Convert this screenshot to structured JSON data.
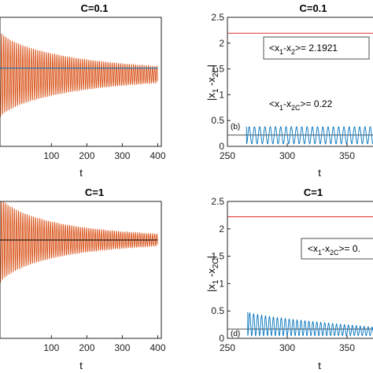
{
  "chart_data": [
    {
      "type": "line",
      "title": "C=0.1",
      "xlabel": "t",
      "xlim": [
        -45,
        410
      ],
      "xticks": [
        100,
        200,
        300,
        400
      ],
      "colors": {
        "oscillation": "#d95319",
        "reference": "#0072bd"
      },
      "series": [
        {
          "kind": "decaying-oscillation",
          "t_start": -45,
          "t_end": 400,
          "amplitude_start": 0.95,
          "amplitude_end": 0.18,
          "center": 0.16,
          "period": 6
        },
        {
          "kind": "constant",
          "value": 0.3
        }
      ]
    },
    {
      "type": "line",
      "title": "C=0.1",
      "xlabel": "t",
      "ylabel_main": "|x",
      "ylabel_sub1": "1",
      "ylabel_mid": " -x",
      "ylabel_sub2": "2C",
      "ylabel_end": "|",
      "xlim": [
        250,
        375
      ],
      "ylim": [
        0,
        2.5
      ],
      "xticks": [
        250,
        300,
        350
      ],
      "yticks": [
        0,
        0.5,
        1,
        1.5,
        2,
        2.5
      ],
      "tag": "(b)",
      "colors": {
        "oscillation": "#0072bd",
        "upper": "#e03030",
        "lower": "#555555"
      },
      "series": [
        {
          "kind": "constant",
          "value": 2.1921,
          "color": "upper"
        },
        {
          "kind": "constant",
          "value": 0.22,
          "color": "lower",
          "from": 250
        },
        {
          "kind": "oscillation",
          "t_start": 266,
          "t_end": 375,
          "min": 0.05,
          "max": 0.38,
          "period": 4.4
        }
      ],
      "annotations": [
        {
          "pre": "<x",
          "s1": "1",
          "mid": "-x",
          "s2": "2",
          "post": ">= 2.1921"
        },
        {
          "pre": "<x",
          "s1": "1",
          "mid": "-x",
          "s2": "2C",
          "post": ">= 0.22"
        }
      ]
    },
    {
      "type": "line",
      "title": "C=1",
      "xlabel": "t",
      "xlim": [
        -45,
        410
      ],
      "xticks": [
        100,
        200,
        300,
        400
      ],
      "colors": {
        "oscillation": "#d95319",
        "reference": "#000000"
      },
      "series": [
        {
          "kind": "decaying-oscillation",
          "t_start": -45,
          "t_end": 400,
          "amplitude_start": 0.9,
          "amplitude_end": 0.12,
          "center": 0.0,
          "period": 6
        },
        {
          "kind": "constant",
          "value": 0.0
        }
      ]
    },
    {
      "type": "line",
      "title": "C=1",
      "xlabel": "t",
      "ylabel_main": "|x",
      "ylabel_sub1": "1",
      "ylabel_mid": " -x",
      "ylabel_sub2": "2C",
      "ylabel_end": "|",
      "xlim": [
        250,
        375
      ],
      "ylim": [
        0,
        2.5
      ],
      "xticks": [
        250,
        300,
        350
      ],
      "yticks": [
        0,
        0.5,
        1,
        1.5,
        2,
        2.5
      ],
      "tag": "(d)",
      "colors": {
        "oscillation": "#0072bd",
        "upper": "#e03030",
        "lower": "#555555"
      },
      "series": [
        {
          "kind": "constant",
          "value": 2.22,
          "color": "upper"
        },
        {
          "kind": "constant",
          "value": 0.17,
          "color": "lower",
          "from": 250
        },
        {
          "kind": "oscillation",
          "t_start": 267,
          "t_end": 375,
          "min_start": 0.05,
          "max_start": 0.48,
          "max_end": 0.2,
          "period": 3.3
        }
      ],
      "annotations": [
        {
          "pre": "<x",
          "s1": "1",
          "mid": "-x",
          "s2": "2C",
          "post": ">= 0."
        }
      ]
    }
  ]
}
